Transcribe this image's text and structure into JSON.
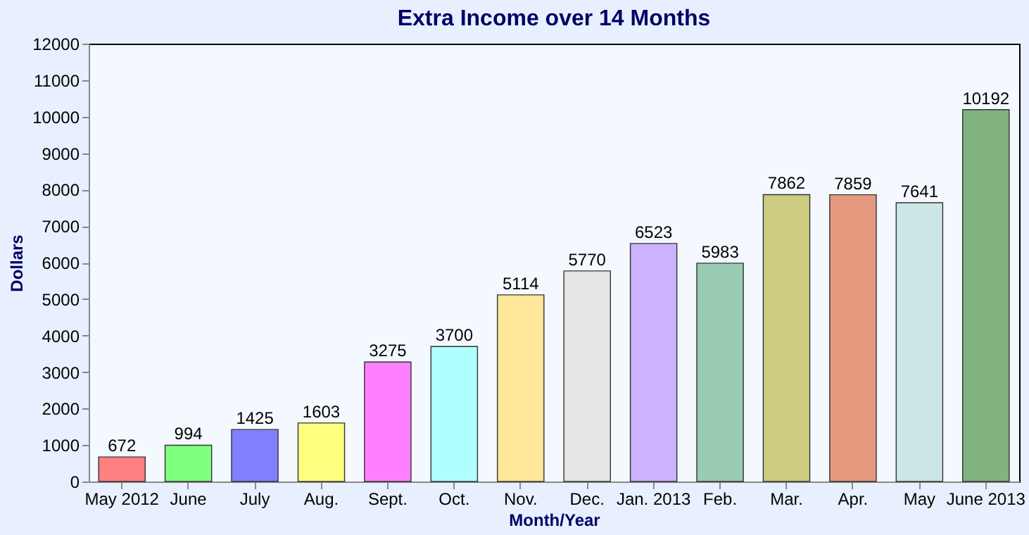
{
  "chart_data": {
    "type": "bar",
    "title": "Extra Income over 14 Months",
    "xlabel": "Month/Year",
    "ylabel": "Dollars",
    "categories": [
      "May 2012",
      "June",
      "July",
      "Aug.",
      "Sept.",
      "Oct.",
      "Nov.",
      "Dec.",
      "Jan. 2013",
      "Feb.",
      "Mar.",
      "Apr.",
      "May",
      "June 2013"
    ],
    "values": [
      672,
      994,
      1425,
      1603,
      3275,
      3700,
      5114,
      5770,
      6523,
      5983,
      7862,
      7859,
      7641,
      10192
    ],
    "colors": [
      "#ff8080",
      "#80ff80",
      "#8080ff",
      "#ffff80",
      "#ff80ff",
      "#b0ffff",
      "#ffe699",
      "#e6e6e6",
      "#ccb3ff",
      "#99ccb3",
      "#cccc80",
      "#e6997f",
      "#cce6e6",
      "#80b380"
    ],
    "ylim": [
      0,
      12000
    ],
    "yticks": [
      0,
      1000,
      2000,
      3000,
      4000,
      5000,
      6000,
      7000,
      8000,
      9000,
      10000,
      11000,
      12000
    ],
    "data_labels": true,
    "grid": false
  }
}
